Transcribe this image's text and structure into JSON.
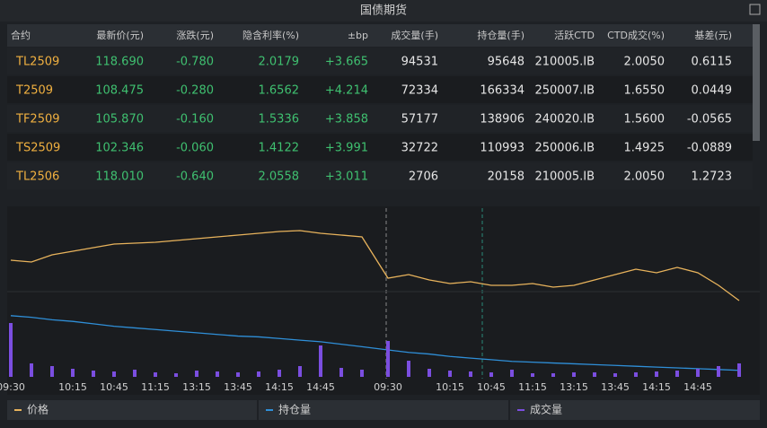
{
  "header": {
    "title": "国债期货"
  },
  "table": {
    "columns": [
      "合约",
      "最新价(元)",
      "涨跌(元)",
      "隐含利率(%)",
      "±bp",
      "成交量(手)",
      "持仓量(手)",
      "活跃CTD",
      "CTD成交(%)",
      "基差(元)"
    ],
    "rows": [
      [
        "TL2509",
        "118.690",
        "-0.780",
        "2.0179",
        "+3.665",
        "94531",
        "95648",
        "210005.IB",
        "2.0050",
        "0.6115"
      ],
      [
        "T2509",
        "108.475",
        "-0.280",
        "1.6562",
        "+4.214",
        "72334",
        "166334",
        "250007.IB",
        "1.6550",
        "0.0449"
      ],
      [
        "TF2509",
        "105.870",
        "-0.160",
        "1.5336",
        "+3.858",
        "57177",
        "138906",
        "240020.IB",
        "1.5600",
        "-0.0565"
      ],
      [
        "TS2509",
        "102.346",
        "-0.060",
        "1.4122",
        "+3.991",
        "32722",
        "110993",
        "250006.IB",
        "1.4925",
        "-0.0889"
      ],
      [
        "TL2506",
        "118.010",
        "-0.640",
        "2.0558",
        "+3.011",
        "2706",
        "20158",
        "210005.IB",
        "2.0050",
        "1.2723"
      ]
    ]
  },
  "chart_data": {
    "type": "line",
    "categories": [
      "09:30",
      null,
      null,
      "10:15",
      null,
      "10:45",
      null,
      "11:15",
      null,
      "13:15",
      null,
      "13:45",
      null,
      "14:15",
      null,
      "14:45",
      null,
      null,
      "09:30",
      null,
      null,
      "10:15",
      null,
      "10:45",
      null,
      "11:15",
      null,
      "13:15",
      null,
      "13:45",
      null,
      "14:15",
      null,
      "14:45",
      null,
      null
    ],
    "ylim": [
      118.0,
      119.0
    ],
    "y2lim": [
      91000,
      99800
    ],
    "y3lim": [
      0,
      8000
    ],
    "series": [
      {
        "name": "价格",
        "color": "#e8b35c",
        "values": [
          118.5,
          118.48,
          118.56,
          118.6,
          118.64,
          118.68,
          118.69,
          118.7,
          118.72,
          118.74,
          118.76,
          118.78,
          118.8,
          118.82,
          118.83,
          118.8,
          118.78,
          118.76,
          118.3,
          118.34,
          118.28,
          118.24,
          118.26,
          118.22,
          118.22,
          118.24,
          118.2,
          118.22,
          118.28,
          118.34,
          118.4,
          118.36,
          118.42,
          118.36,
          118.22,
          118.05
        ]
      },
      {
        "name": "持仓量",
        "color": "#2f8fd8",
        "axis": "y2",
        "values": [
          98500,
          98300,
          98000,
          97800,
          97500,
          97200,
          97000,
          96800,
          96600,
          96400,
          96200,
          96000,
          95900,
          95700,
          95500,
          95300,
          95000,
          94700,
          94300,
          94000,
          93800,
          93500,
          93300,
          93100,
          92900,
          92800,
          92700,
          92600,
          92500,
          92400,
          92300,
          92200,
          92100,
          92000,
          91900,
          91800
        ]
      },
      {
        "name": "成交量",
        "color": "#7b4ee0",
        "type": "bar",
        "axis": "y3",
        "values": [
          6000,
          1500,
          1200,
          900,
          700,
          600,
          800,
          500,
          400,
          700,
          600,
          500,
          600,
          800,
          1200,
          3500,
          1000,
          800,
          4000,
          1800,
          900,
          700,
          600,
          500,
          800,
          400,
          400,
          500,
          500,
          400,
          500,
          600,
          700,
          900,
          1200,
          1500
        ]
      }
    ]
  }
}
